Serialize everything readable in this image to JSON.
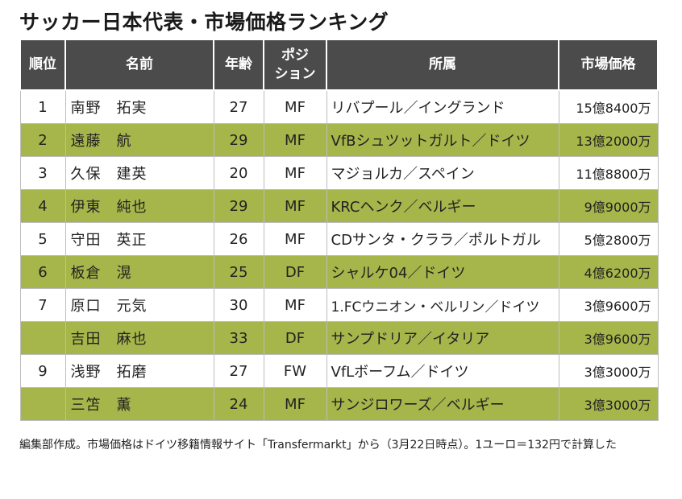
{
  "title": "サッカー日本代表・市場価格ランキング",
  "table": {
    "headers": {
      "rank": "順位",
      "name": "名前",
      "age": "年齢",
      "position_line1": "ポジ",
      "position_line2": "ション",
      "club": "所属",
      "value": "市場価格"
    },
    "rows": [
      {
        "rank": "1",
        "name": "南野　拓実",
        "age": "27",
        "position": "MF",
        "club": "リバプール／イングランド",
        "value": "15億8400万"
      },
      {
        "rank": "2",
        "name": "遠藤　航",
        "age": "29",
        "position": "MF",
        "club": "VfBシュツットガルト／ドイツ",
        "value": "13億2000万"
      },
      {
        "rank": "3",
        "name": "久保　建英",
        "age": "20",
        "position": "MF",
        "club": "マジョルカ／スペイン",
        "value": "11億8800万"
      },
      {
        "rank": "4",
        "name": "伊東　純也",
        "age": "29",
        "position": "MF",
        "club": "KRCヘンク／ベルギー",
        "value": "9億9000万"
      },
      {
        "rank": "5",
        "name": "守田　英正",
        "age": "26",
        "position": "MF",
        "club": "CDサンタ・クララ／ポルトガル",
        "value": "5億2800万"
      },
      {
        "rank": "6",
        "name": "板倉　滉",
        "age": "25",
        "position": "DF",
        "club": "シャルケ04／ドイツ",
        "value": "4億6200万"
      },
      {
        "rank": "7",
        "name": "原口　元気",
        "age": "30",
        "position": "MF",
        "club": "1.FCウニオン・ベルリン／ドイツ",
        "value": "3億9600万"
      },
      {
        "rank": "",
        "name": "吉田　麻也",
        "age": "33",
        "position": "DF",
        "club": "サンプドリア／イタリア",
        "value": "3億9600万"
      },
      {
        "rank": "9",
        "name": "浅野　拓磨",
        "age": "27",
        "position": "FW",
        "club": "VfLボーフム／ドイツ",
        "value": "3億3000万"
      },
      {
        "rank": "",
        "name": "三笘　薫",
        "age": "24",
        "position": "MF",
        "club": "サンジロワーズ／ベルギー",
        "value": "3億3000万"
      }
    ]
  },
  "footnote": "編集部作成。市場価格はドイツ移籍情報サイト「Transfermarkt」から（3月22日時点）。1ユーロ＝132円で計算した",
  "colors": {
    "header_bg": "#4b4b4b",
    "stripe_green": "#a6b64a",
    "stripe_white": "#ffffff"
  }
}
